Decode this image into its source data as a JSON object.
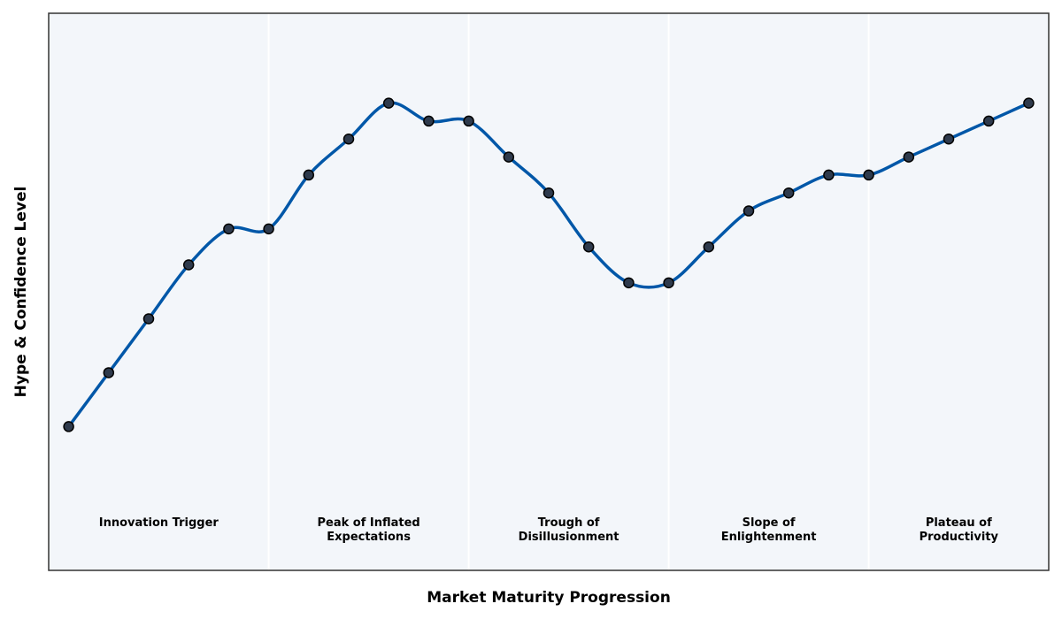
{
  "chart_data": {
    "type": "line",
    "title": "",
    "xlabel": "Market Maturity Progression",
    "ylabel": "Hype & Confidence Level",
    "grid": false,
    "x_ticks_shown": false,
    "y_ticks_shown": false,
    "xlim": [
      -0.5,
      24.5
    ],
    "ylim": [
      0,
      31
    ],
    "x": [
      0,
      1,
      2,
      3,
      4,
      5,
      6,
      7,
      8,
      9,
      10,
      11,
      12,
      13,
      14,
      15,
      16,
      17,
      18,
      19,
      20,
      21,
      22,
      23,
      24
    ],
    "series": [
      {
        "values": [
          8,
          11,
          14,
          17,
          19,
          19,
          22,
          24,
          26,
          25,
          25,
          23,
          21,
          18,
          16,
          16,
          18,
          20,
          21,
          22,
          22,
          23,
          24,
          25,
          26
        ]
      }
    ],
    "phases": [
      {
        "label": [
          "Innovation Trigger"
        ],
        "start": -0.5,
        "end": 5
      },
      {
        "label": [
          "Peak of Inflated",
          "Expectations"
        ],
        "start": 5,
        "end": 10
      },
      {
        "label": [
          "Trough of",
          "Disillusionment"
        ],
        "start": 10,
        "end": 15
      },
      {
        "label": [
          "Slope of",
          "Enlightenment"
        ],
        "start": 15,
        "end": 20
      },
      {
        "label": [
          "Plateau of",
          "Productivity"
        ],
        "start": 20,
        "end": 24.5
      }
    ],
    "colors": {
      "line": "#0057a8",
      "marker_fill": "#2e3a4c",
      "marker_edge": "#000000",
      "plot_background": "#f3f6fa",
      "phase_divider": "#ffffff",
      "frame": "#333333"
    }
  }
}
